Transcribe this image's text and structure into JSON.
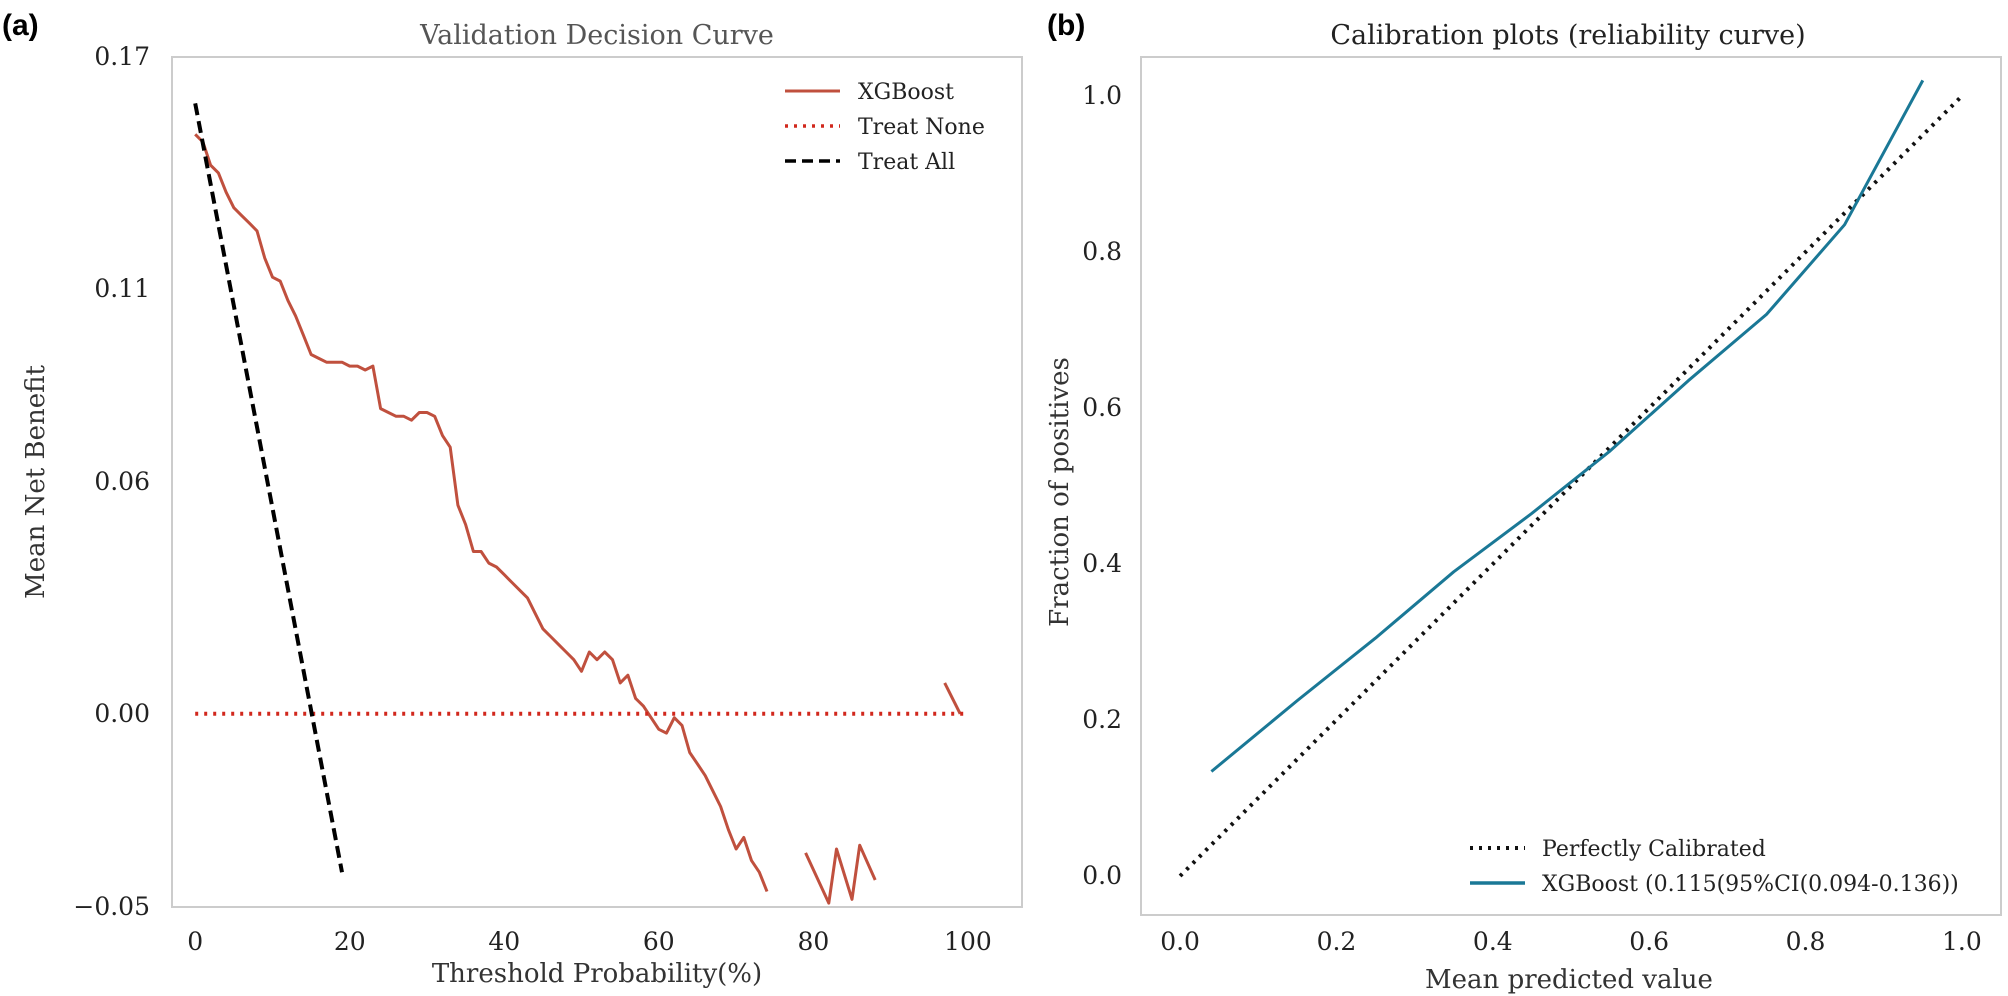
{
  "chart_data": [
    {
      "panel_label": "(a)",
      "type": "line",
      "title": "Validation Decision Curve",
      "xlabel": "Threshold Probability(%)",
      "ylabel": "Mean Net Benefit",
      "xlim": [
        -3,
        107
      ],
      "ylim": [
        -0.05,
        0.17
      ],
      "xticks": [
        0,
        20,
        40,
        60,
        80,
        100
      ],
      "yticks": [
        -0.05,
        0.0,
        0.06,
        0.11,
        0.17
      ],
      "ytick_labels": [
        "−0.05",
        "0.00",
        "0.06",
        "0.11",
        "0.17"
      ],
      "grid": false,
      "legend_position": "top-right",
      "series": [
        {
          "name": "XGBoost",
          "color": "#c0503e",
          "style": "solid",
          "segments": [
            [
              [
                0,
                0.15
              ],
              [
                1,
                0.148
              ],
              [
                2,
                0.142
              ],
              [
                3,
                0.14
              ],
              [
                4,
                0.135
              ],
              [
                5,
                0.131
              ],
              [
                6,
                0.129
              ],
              [
                7,
                0.127
              ],
              [
                8,
                0.125
              ],
              [
                9,
                0.118
              ],
              [
                10,
                0.113
              ],
              [
                11,
                0.112
              ],
              [
                12,
                0.107
              ],
              [
                13,
                0.103
              ],
              [
                14,
                0.098
              ],
              [
                15,
                0.093
              ],
              [
                16,
                0.092
              ],
              [
                17,
                0.091
              ],
              [
                18,
                0.091
              ],
              [
                19,
                0.091
              ],
              [
                20,
                0.09
              ],
              [
                21,
                0.09
              ],
              [
                22,
                0.089
              ],
              [
                23,
                0.09
              ],
              [
                24,
                0.079
              ],
              [
                25,
                0.078
              ],
              [
                26,
                0.077
              ],
              [
                27,
                0.077
              ],
              [
                28,
                0.076
              ],
              [
                29,
                0.078
              ],
              [
                30,
                0.078
              ],
              [
                31,
                0.077
              ],
              [
                32,
                0.072
              ],
              [
                33,
                0.069
              ],
              [
                34,
                0.054
              ],
              [
                35,
                0.049
              ],
              [
                36,
                0.042
              ],
              [
                37,
                0.042
              ],
              [
                38,
                0.039
              ],
              [
                39,
                0.038
              ],
              [
                40,
                0.036
              ],
              [
                41,
                0.034
              ],
              [
                42,
                0.032
              ],
              [
                43,
                0.03
              ],
              [
                44,
                0.026
              ],
              [
                45,
                0.022
              ],
              [
                46,
                0.02
              ],
              [
                47,
                0.018
              ],
              [
                48,
                0.016
              ],
              [
                49,
                0.014
              ],
              [
                50,
                0.011
              ],
              [
                51,
                0.016
              ],
              [
                52,
                0.014
              ],
              [
                53,
                0.016
              ],
              [
                54,
                0.014
              ],
              [
                55,
                0.008
              ],
              [
                56,
                0.01
              ],
              [
                57,
                0.004
              ],
              [
                58,
                0.002
              ],
              [
                59,
                -0.001
              ],
              [
                60,
                -0.004
              ],
              [
                61,
                -0.005
              ],
              [
                62,
                -0.001
              ],
              [
                63,
                -0.003
              ],
              [
                64,
                -0.01
              ],
              [
                65,
                -0.013
              ],
              [
                66,
                -0.016
              ],
              [
                67,
                -0.02
              ],
              [
                68,
                -0.024
              ],
              [
                69,
                -0.03
              ],
              [
                70,
                -0.035
              ],
              [
                71,
                -0.032
              ],
              [
                72,
                -0.038
              ],
              [
                73,
                -0.041
              ],
              [
                74,
                -0.046
              ]
            ],
            [
              [
                79,
                -0.036
              ],
              [
                82,
                -0.049
              ],
              [
                83,
                -0.035
              ],
              [
                85,
                -0.048
              ],
              [
                86,
                -0.034
              ],
              [
                88,
                -0.043
              ]
            ],
            [
              [
                97,
                0.008
              ],
              [
                99,
                0.0
              ]
            ]
          ]
        },
        {
          "name": "Treat None",
          "color": "#d1281d",
          "style": "dotted",
          "segments": [
            [
              [
                0,
                0.0
              ],
              [
                100,
                0.0
              ]
            ]
          ]
        },
        {
          "name": "Treat All",
          "color": "#000000",
          "style": "dashed",
          "segments": [
            [
              [
                0,
                0.158
              ],
              [
                19,
                -0.041
              ]
            ]
          ]
        }
      ]
    },
    {
      "panel_label": "(b)",
      "type": "line",
      "title": "Calibration plots  (reliability curve)",
      "xlabel": "Mean predicted value",
      "ylabel": "Fraction of positives",
      "xlim": [
        -0.05,
        1.05
      ],
      "ylim": [
        -0.05,
        1.05
      ],
      "xticks": [
        0.0,
        0.2,
        0.4,
        0.6,
        0.8,
        1.0
      ],
      "yticks": [
        0.0,
        0.2,
        0.4,
        0.6,
        0.8,
        1.0
      ],
      "xtick_labels": [
        "0.0",
        "0.2",
        "0.4",
        "0.6",
        "0.8",
        "1.0"
      ],
      "ytick_labels": [
        "0.0",
        "0.2",
        "0.4",
        "0.6",
        "0.8",
        "1.0"
      ],
      "grid": false,
      "legend_position": "bottom-right",
      "series": [
        {
          "name": "Perfectly Calibrated",
          "color": "#111111",
          "style": "dotted",
          "segments": [
            [
              [
                0.0,
                0.0
              ],
              [
                1.0,
                1.0
              ]
            ]
          ]
        },
        {
          "name": "XGBoost (0.115(95%CI(0.094-0.136))",
          "color": "#1a7896",
          "style": "solid",
          "segments": [
            [
              [
                0.04,
                0.134
              ],
              [
                0.15,
                0.225
              ],
              [
                0.25,
                0.305
              ],
              [
                0.35,
                0.39
              ],
              [
                0.45,
                0.465
              ],
              [
                0.55,
                0.545
              ],
              [
                0.65,
                0.635
              ],
              [
                0.75,
                0.72
              ],
              [
                0.85,
                0.835
              ],
              [
                0.95,
                1.02
              ]
            ]
          ]
        }
      ]
    }
  ]
}
